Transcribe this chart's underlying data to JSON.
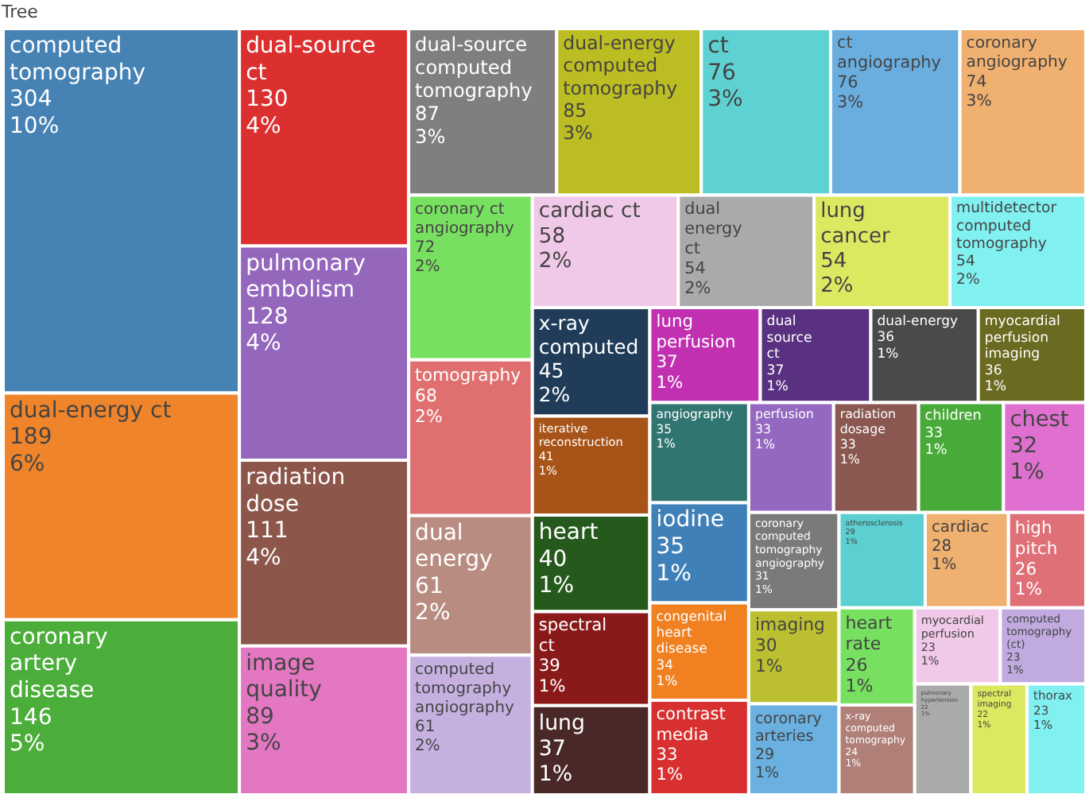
{
  "chart_data": {
    "type": "other",
    "title": "Tree",
    "data_labels": true,
    "categories": [
      "computed tomography",
      "dual-energy ct",
      "coronary artery disease",
      "dual-source ct",
      "pulmonary embolism",
      "radiation dose",
      "image quality",
      "dual-source computed tomography",
      "dual-energy computed tomography",
      "ct",
      "ct angiography",
      "coronary angiography",
      "coronary ct angiography",
      "tomography",
      "dual energy",
      "computed tomography angiography",
      "cardiac ct",
      "dual energy ct",
      "lung cancer",
      "multidetector computed tomography",
      "x-ray computed",
      "iterative reconstruction",
      "heart",
      "spectral ct",
      "lung",
      "lung perfusion",
      "dual source ct",
      "dual-energy",
      "myocardial perfusion imaging",
      "angiography",
      "iodine",
      "congenital heart disease",
      "contrast media",
      "perfusion",
      "radiation dosage",
      "children",
      "chest",
      "coronary computed tomography angiography",
      "imaging",
      "coronary arteries",
      "atherosclerosis",
      "cardiac",
      "high pitch",
      "heart rate",
      "x-ray computed tomography",
      "myocardial perfusion",
      "computed tomography (ct)",
      "pulmonary hypertension",
      "spectral imaging",
      "thorax"
    ],
    "values": [
      304,
      189,
      146,
      130,
      128,
      111,
      89,
      87,
      85,
      76,
      76,
      74,
      72,
      68,
      61,
      61,
      58,
      54,
      54,
      54,
      45,
      41,
      40,
      39,
      37,
      37,
      37,
      36,
      36,
      35,
      35,
      34,
      33,
      33,
      33,
      33,
      32,
      31,
      30,
      29,
      29,
      28,
      26,
      26,
      24,
      23,
      23,
      22,
      22,
      23
    ],
    "annotations": [
      {
        "text": "10%",
        "x": "computed tomography"
      },
      {
        "text": "6%",
        "x": "dual-energy ct"
      },
      {
        "text": "5%",
        "x": "coronary artery disease"
      },
      {
        "text": "4%",
        "x": "dual-source ct"
      },
      {
        "text": "4%",
        "x": "pulmonary embolism"
      },
      {
        "text": "4%",
        "x": "radiation dose"
      },
      {
        "text": "3%",
        "x": "image quality"
      },
      {
        "text": "3%",
        "x": "dual-source computed tomography"
      },
      {
        "text": "3%",
        "x": "dual-energy computed tomography"
      },
      {
        "text": "3%",
        "x": "ct"
      },
      {
        "text": "3%",
        "x": "ct angiography"
      },
      {
        "text": "3%",
        "x": "coronary angiography"
      },
      {
        "text": "2%",
        "x": "coronary ct angiography"
      },
      {
        "text": "2%",
        "x": "tomography"
      },
      {
        "text": "2%",
        "x": "dual energy"
      },
      {
        "text": "2%",
        "x": "computed tomography angiography"
      },
      {
        "text": "2%",
        "x": "cardiac ct"
      },
      {
        "text": "2%",
        "x": "dual energy ct"
      },
      {
        "text": "2%",
        "x": "lung cancer"
      },
      {
        "text": "2%",
        "x": "multidetector computed tomography"
      },
      {
        "text": "2%",
        "x": "x-ray computed"
      },
      {
        "text": "1%",
        "x": "iterative reconstruction"
      },
      {
        "text": "1%",
        "x": "heart"
      },
      {
        "text": "1%",
        "x": "spectral ct"
      },
      {
        "text": "1%",
        "x": "lung"
      },
      {
        "text": "1%",
        "x": "lung perfusion"
      },
      {
        "text": "1%",
        "x": "dual source ct"
      },
      {
        "text": "1%",
        "x": "dual-energy"
      },
      {
        "text": "1%",
        "x": "myocardial perfusion imaging"
      },
      {
        "text": "1%",
        "x": "angiography"
      },
      {
        "text": "1%",
        "x": "iodine"
      },
      {
        "text": "1%",
        "x": "congenital heart disease"
      },
      {
        "text": "1%",
        "x": "contrast media"
      },
      {
        "text": "1%",
        "x": "perfusion"
      },
      {
        "text": "1%",
        "x": "radiation dosage"
      },
      {
        "text": "1%",
        "x": "children"
      },
      {
        "text": "1%",
        "x": "chest"
      },
      {
        "text": "1%",
        "x": "coronary computed tomography angiography"
      },
      {
        "text": "1%",
        "x": "imaging"
      },
      {
        "text": "1%",
        "x": "coronary arteries"
      },
      {
        "text": "1%",
        "x": "atherosclerosis"
      },
      {
        "text": "1%",
        "x": "cardiac"
      },
      {
        "text": "1%",
        "x": "high pitch"
      },
      {
        "text": "1%",
        "x": "heart rate"
      },
      {
        "text": "1%",
        "x": "x-ray computed tomography"
      },
      {
        "text": "1%",
        "x": "myocardial perfusion"
      },
      {
        "text": "1%",
        "x": "computed tomography (ct)"
      },
      {
        "text": "1%",
        "x": "pulmonary hypertension"
      },
      {
        "text": "1%",
        "x": "spectral imaging"
      },
      {
        "text": "1%",
        "x": "thorax"
      }
    ],
    "colors": [
      "#4682b4",
      "#f0842a",
      "#4cae3a",
      "#dc3030",
      "#9467bd",
      "#8c564b",
      "#e377c2",
      "#7f7f7f",
      "#bcbd22",
      "#5ed2d2",
      "#6aaee0",
      "#f0b070",
      "#78e060",
      "#e07070",
      "#b88c80",
      "#c5b0e0",
      "#f0c8e8",
      "#aaaaaa",
      "#dce860",
      "#80f0f0",
      "#203c58",
      "#a85418",
      "#265a1c",
      "#8a1a1a",
      "#4a2828",
      "#c030b0",
      "#5a3080",
      "#4a4a4a",
      "#6a6a20",
      "#307570",
      "#4080b8",
      "#f08020",
      "#d83030",
      "#9468c0",
      "#8a5850",
      "#48aa38",
      "#e070d0",
      "#7a7a7a",
      "#bcc030",
      "#6ab0e0",
      "#5ccfd0",
      "#f0b070",
      "#e07078",
      "#78e060",
      "#b08078",
      "#f0c8e8",
      "#c0aae0",
      "#aaaaaa",
      "#dce860",
      "#80f0f0"
    ]
  }
}
